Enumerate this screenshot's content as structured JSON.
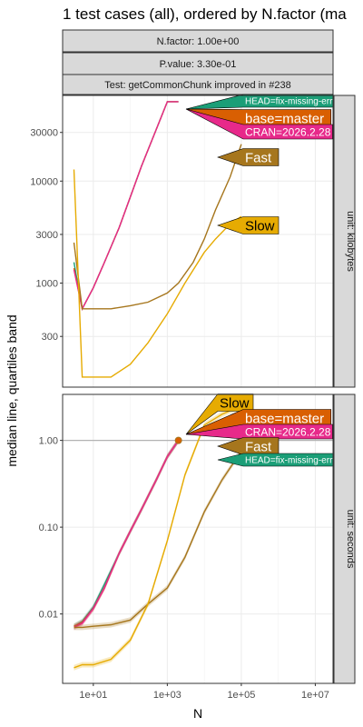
{
  "chart_data": {
    "type": "line",
    "title": "1 test cases (all), ordered by N.factor (ma",
    "strips_top": [
      "N.factor: 1.00e+00",
      "P.value: 3.30e-01",
      "Test: getCommonChunk improved in #238"
    ],
    "xlabel": "N",
    "ylabel": "median line, quartiles band",
    "x_scale": "log10",
    "x_ticks": [
      "1e+01",
      "1e+03",
      "1e+05",
      "1e+07"
    ],
    "grid": true,
    "colors": {
      "HEAD=fix-missing-err": "#1b9e77",
      "base=master": "#d95f02",
      "CRAN=2026.2.28": "#e7298a",
      "Fast": "#a6761d",
      "Slow": "#e6ab02"
    },
    "panels": [
      {
        "strip": "unit: kilobytes",
        "y_scale": "log10",
        "y_ticks": [
          "300",
          "1000",
          "3000",
          "10000",
          "30000"
        ],
        "series": [
          {
            "name": "HEAD=fix-missing-err",
            "x": [
              3,
              5,
              10,
              20,
              50,
              100,
              200,
              500,
              1000,
              2000
            ],
            "y": [
              1600,
              560,
              900,
              1600,
              3500,
              7000,
              14000,
              32000,
              60000,
              60000
            ]
          },
          {
            "name": "base=master",
            "x": [
              3,
              5,
              10,
              20,
              50,
              100,
              200,
              500,
              1000,
              2000
            ],
            "y": [
              1400,
              560,
              900,
              1600,
              3500,
              7000,
              14000,
              32000,
              60000,
              60000
            ]
          },
          {
            "name": "CRAN=2026.2.28",
            "x": [
              3,
              5,
              10,
              20,
              50,
              100,
              200,
              500,
              1000,
              2000
            ],
            "y": [
              1350,
              560,
              900,
              1600,
              3500,
              7000,
              14000,
              32000,
              60000,
              60000
            ]
          },
          {
            "name": "Fast",
            "x": [
              3,
              5,
              10,
              30,
              100,
              300,
              1000,
              2000,
              5000,
              10000,
              20000,
              50000,
              100000
            ],
            "y": [
              2500,
              560,
              560,
              560,
              600,
              650,
              800,
              1000,
              1600,
              2700,
              5200,
              11000,
              23000
            ]
          },
          {
            "name": "Slow",
            "x": [
              3,
              5,
              10,
              30,
              100,
              300,
              1000,
              3000,
              10000,
              20000,
              50000,
              100000
            ],
            "y": [
              13000,
              120,
              120,
              120,
              160,
              260,
              500,
              1000,
              2000,
              2700,
              3800,
              4500
            ]
          }
        ],
        "labels": [
          {
            "text": "HEAD=fix-missing-err",
            "series": "HEAD=fix-missing-err",
            "size": "small"
          },
          {
            "text": "base=master",
            "series": "base=master",
            "size": "large"
          },
          {
            "text": "CRAN=2026.2.28",
            "series": "CRAN=2026.2.28",
            "size": "medium"
          },
          {
            "text": "Fast",
            "series": "Fast",
            "size": "large"
          },
          {
            "text": "Slow",
            "series": "Slow",
            "size": "large"
          }
        ]
      },
      {
        "strip": "unit: seconds",
        "y_scale": "log10",
        "y_ticks": [
          "0.01",
          "0.10",
          "1.00"
        ],
        "hline": 1,
        "series": [
          {
            "name": "HEAD=fix-missing-err",
            "x": [
              3,
              5,
              10,
              20,
              50,
              100,
              200,
              500,
              1000,
              2000
            ],
            "y": [
              0.0072,
              0.0082,
              0.012,
              0.022,
              0.05,
              0.09,
              0.16,
              0.35,
              0.65,
              1.0
            ]
          },
          {
            "name": "base=master",
            "x": [
              3,
              5,
              10,
              20,
              50,
              100,
              200,
              500,
              1000,
              2000
            ],
            "y": [
              0.0072,
              0.008,
              0.0115,
              0.02,
              0.05,
              0.09,
              0.16,
              0.35,
              0.65,
              1.0
            ]
          },
          {
            "name": "CRAN=2026.2.28",
            "x": [
              3,
              5,
              10,
              20,
              50,
              100,
              200,
              500,
              1000,
              2000
            ],
            "y": [
              0.007,
              0.0078,
              0.0115,
              0.02,
              0.05,
              0.09,
              0.16,
              0.35,
              0.65,
              1.0
            ]
          },
          {
            "name": "Fast",
            "x": [
              3,
              5,
              10,
              30,
              100,
              300,
              1000,
              3000,
              10000,
              30000,
              100000
            ],
            "y": [
              0.007,
              0.007,
              0.0072,
              0.0075,
              0.0085,
              0.013,
              0.02,
              0.045,
              0.15,
              0.35,
              0.75
            ]
          },
          {
            "name": "Slow",
            "x": [
              3,
              5,
              10,
              30,
              100,
              300,
              1000,
              3000,
              10000,
              30000,
              100000
            ],
            "y": [
              0.0024,
              0.0026,
              0.0026,
              0.003,
              0.005,
              0.013,
              0.07,
              0.4,
              1.5,
              2.0,
              2.5
            ]
          }
        ],
        "labels": [
          {
            "text": "Slow",
            "series": "Slow",
            "size": "large"
          },
          {
            "text": "base=master",
            "series": "base=master",
            "size": "large"
          },
          {
            "text": "CRAN=2026.2.28",
            "series": "CRAN=2026.2.28",
            "size": "medium"
          },
          {
            "text": "Fast",
            "series": "Fast",
            "size": "large"
          },
          {
            "text": "HEAD=fix-missing-err",
            "series": "HEAD=fix-missing-err",
            "size": "small"
          }
        ]
      }
    ]
  }
}
